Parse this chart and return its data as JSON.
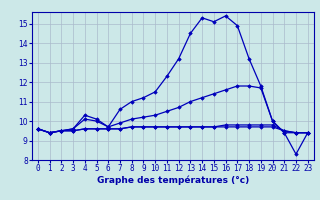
{
  "xlabel": "Graphe des températures (°c)",
  "hours": [
    0,
    1,
    2,
    3,
    4,
    5,
    6,
    7,
    8,
    9,
    10,
    11,
    12,
    13,
    14,
    15,
    16,
    17,
    18,
    19,
    20,
    21,
    22,
    23
  ],
  "line1": [
    9.6,
    9.4,
    9.5,
    9.6,
    10.3,
    10.1,
    9.7,
    10.6,
    11.0,
    11.2,
    11.5,
    12.3,
    13.2,
    14.5,
    15.3,
    15.1,
    15.4,
    14.9,
    13.2,
    11.8,
    10.0,
    9.4,
    8.3,
    9.4
  ],
  "line2": [
    9.6,
    9.4,
    9.5,
    9.6,
    10.1,
    10.0,
    9.7,
    9.9,
    10.1,
    10.2,
    10.3,
    10.5,
    10.7,
    11.0,
    11.2,
    11.4,
    11.6,
    11.8,
    11.8,
    11.7,
    10.0,
    9.4,
    9.4,
    9.4
  ],
  "line3": [
    9.6,
    9.4,
    9.5,
    9.5,
    9.6,
    9.6,
    9.6,
    9.6,
    9.7,
    9.7,
    9.7,
    9.7,
    9.7,
    9.7,
    9.7,
    9.7,
    9.7,
    9.7,
    9.7,
    9.7,
    9.7,
    9.5,
    9.4,
    9.4
  ],
  "line4": [
    9.6,
    9.4,
    9.5,
    9.5,
    9.6,
    9.6,
    9.6,
    9.6,
    9.7,
    9.7,
    9.7,
    9.7,
    9.7,
    9.7,
    9.7,
    9.7,
    9.8,
    9.8,
    9.8,
    9.8,
    9.8,
    9.5,
    9.4,
    9.4
  ],
  "bg_color": "#cce8e8",
  "line_color": "#0000bb",
  "grid_color": "#aabbcc",
  "label_color": "#0000aa",
  "ylim": [
    8,
    15.6
  ],
  "yticks": [
    8,
    9,
    10,
    11,
    12,
    13,
    14,
    15
  ],
  "marker": "D",
  "markersize": 1.8,
  "linewidth": 0.9,
  "tick_fontsize": 5.5,
  "xlabel_fontsize": 6.5
}
